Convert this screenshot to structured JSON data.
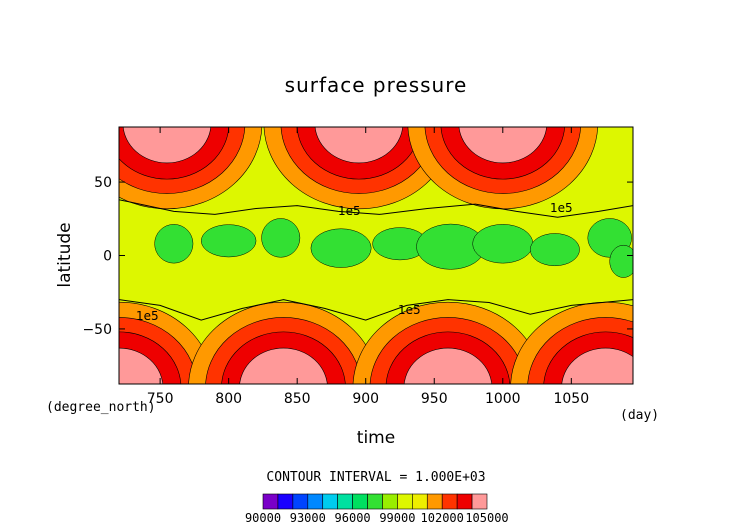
{
  "chart_data": {
    "type": "heatmap",
    "title": "surface pressure",
    "xlabel": "time",
    "ylabel": "latitude",
    "x_unit": "(day)",
    "y_unit": "(degree_north)",
    "xlim": [
      720,
      1095
    ],
    "ylim": [
      -87.5,
      87.5
    ],
    "x_ticks": [
      750,
      800,
      850,
      900,
      950,
      1000,
      1050
    ],
    "y_ticks": [
      50,
      0,
      -50
    ],
    "grid": false,
    "legend": "bottom",
    "contour_interval_text": "CONTOUR INTERVAL = 1.000E+03",
    "contour_label": "1e5",
    "colorbar": {
      "levels": [
        90000,
        91000,
        92000,
        93000,
        94000,
        95000,
        96000,
        97000,
        98000,
        99000,
        100000,
        101000,
        102000,
        103000,
        104000,
        105000
      ],
      "tick_labels": [
        "90000",
        "93000",
        "96000",
        "99000",
        "102000",
        "105000"
      ],
      "colors": [
        "#7a00c8",
        "#1a00ff",
        "#0044ff",
        "#0088ff",
        "#00ccee",
        "#00e0a0",
        "#00e060",
        "#33e033",
        "#99ee00",
        "#ddf700",
        "#eeee00",
        "#ff9900",
        "#ff3300",
        "#ee0000",
        "#ff9999"
      ]
    },
    "features": [
      {
        "kind": "high",
        "lat": 90,
        "t": 755
      },
      {
        "kind": "high",
        "lat": 90,
        "t": 895
      },
      {
        "kind": "high",
        "lat": 90,
        "t": 1000
      },
      {
        "kind": "high",
        "lat": -90,
        "t": 720
      },
      {
        "kind": "high",
        "lat": -90,
        "t": 840
      },
      {
        "kind": "high",
        "lat": -90,
        "t": 960
      },
      {
        "kind": "high",
        "lat": -90,
        "t": 1075
      }
    ]
  }
}
